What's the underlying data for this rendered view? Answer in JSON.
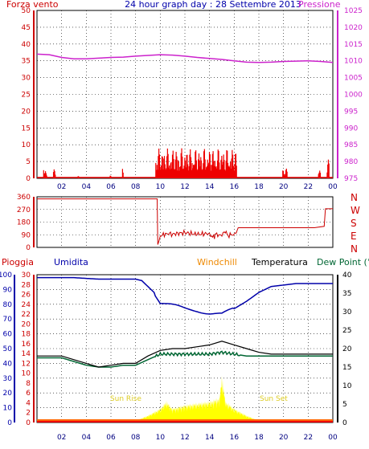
{
  "title": "24 hour graph day : 28 Settembre 2013",
  "hour_labels": [
    "02",
    "04",
    "06",
    "08",
    "10",
    "12",
    "14",
    "16",
    "18",
    "20",
    "22",
    "00"
  ],
  "colors": {
    "wind": "#ee0000",
    "pressure": "#cc22cc",
    "direction": "#cc0000",
    "humidity": "#0000aa",
    "temperature": "#000000",
    "dewpoint": "#006633",
    "windchill": "#ee8800",
    "sun": "#ffff00",
    "rain": "#ee0000",
    "axis_left": "#cc0000",
    "grid": "#000000"
  },
  "chart_data": [
    {
      "type": "bar",
      "id": "wind-pressure",
      "left_label": "Forza vento",
      "right_label": "Pressione",
      "left_ticks": [
        "0",
        "5",
        "10",
        "15",
        "20",
        "25",
        "30",
        "35",
        "40",
        "45",
        "50"
      ],
      "right_ticks": [
        "975",
        "980",
        "985",
        "990",
        "995",
        "1000",
        "1005",
        "1010",
        "1015",
        "1020",
        "1025"
      ],
      "ylim_left": [
        0,
        50
      ],
      "ylim_right": [
        975,
        1025
      ],
      "xlim": [
        0,
        24
      ],
      "pressure_series": [
        [
          0,
          1012.0
        ],
        [
          1,
          1011.8
        ],
        [
          2,
          1011.0
        ],
        [
          3,
          1010.6
        ],
        [
          4,
          1010.6
        ],
        [
          5,
          1010.8
        ],
        [
          6,
          1011.0
        ],
        [
          7,
          1011.1
        ],
        [
          8,
          1011.4
        ],
        [
          9,
          1011.6
        ],
        [
          10,
          1011.8
        ],
        [
          11,
          1011.7
        ],
        [
          12,
          1011.4
        ],
        [
          13,
          1011.0
        ],
        [
          14,
          1010.7
        ],
        [
          15,
          1010.4
        ],
        [
          16,
          1010.0
        ],
        [
          17,
          1009.6
        ],
        [
          18,
          1009.5
        ],
        [
          19,
          1009.6
        ],
        [
          20,
          1009.8
        ],
        [
          21,
          1009.9
        ],
        [
          22,
          1010.0
        ],
        [
          23,
          1009.8
        ],
        [
          24,
          1009.5
        ]
      ],
      "wind_bursts": [
        [
          0.5,
          0.8,
          3
        ],
        [
          1.3,
          1.5,
          3
        ],
        [
          3.3,
          3.4,
          2
        ],
        [
          5.9,
          6.0,
          2
        ],
        [
          6.9,
          7.0,
          3
        ],
        [
          9.6,
          16.2,
          9
        ],
        [
          19.9,
          20.3,
          3
        ],
        [
          22.8,
          23.0,
          3
        ],
        [
          23.5,
          23.7,
          6
        ]
      ]
    },
    {
      "type": "line",
      "id": "wind-direction",
      "left_ticks": [
        "0",
        "90",
        "180",
        "270",
        "360"
      ],
      "right_labels": [
        "N",
        "W",
        "S",
        "E",
        "N"
      ],
      "ylim": [
        0,
        360
      ],
      "xlim": [
        0,
        24
      ],
      "direction_series": [
        [
          0,
          345
        ],
        [
          9.75,
          345
        ],
        [
          9.8,
          20
        ],
        [
          10.0,
          80
        ],
        [
          10.5,
          100
        ],
        [
          11,
          95
        ],
        [
          12,
          105
        ],
        [
          13,
          92
        ],
        [
          14,
          100
        ],
        [
          14.4,
          60
        ],
        [
          14.5,
          95
        ],
        [
          15,
          80
        ],
        [
          15.2,
          110
        ],
        [
          15.5,
          85
        ],
        [
          16,
          95
        ],
        [
          16.4,
          140
        ],
        [
          22.5,
          140
        ],
        [
          23.3,
          150
        ],
        [
          23.4,
          275
        ],
        [
          24,
          275
        ]
      ]
    },
    {
      "type": "line",
      "id": "weather",
      "labels": {
        "rain": "Pioggia",
        "humidity": "Umidita",
        "windchill": "Windchill",
        "temperature": "Temperatura",
        "dewpoint": "Dew Point (°C"
      },
      "humidity_ticks": [
        "0",
        "10",
        "20",
        "30",
        "40",
        "50",
        "60",
        "70",
        "80",
        "90",
        "100"
      ],
      "rain_ticks": [
        "0",
        "2",
        "4",
        "6",
        "8",
        "10",
        "12",
        "14",
        "16",
        "18",
        "20",
        "22",
        "24",
        "26",
        "28",
        "30"
      ],
      "temp_ticks": [
        "0",
        "5",
        "10",
        "15",
        "20",
        "25",
        "30",
        "35",
        "40"
      ],
      "annotations": [
        {
          "label": "Sun Rise",
          "x": 7.2
        },
        {
          "label": "Sun Set",
          "x": 19.2
        }
      ],
      "ylim_humidity": [
        0,
        100
      ],
      "ylim_temp": [
        0,
        40
      ],
      "xlim": [
        0,
        24
      ],
      "humidity_series": [
        [
          0,
          98
        ],
        [
          3,
          98
        ],
        [
          5,
          97
        ],
        [
          7,
          97
        ],
        [
          8,
          97
        ],
        [
          8.5,
          96
        ],
        [
          9.5,
          88
        ],
        [
          10,
          81
        ],
        [
          11,
          79
        ],
        [
          12,
          77
        ],
        [
          13,
          76
        ],
        [
          14,
          74
        ],
        [
          15,
          73
        ],
        [
          16,
          77
        ],
        [
          17,
          82
        ],
        [
          18,
          88
        ],
        [
          19,
          92
        ],
        [
          20,
          93
        ],
        [
          21,
          94
        ],
        [
          22,
          94
        ],
        [
          24,
          94
        ]
      ],
      "temperature_series": [
        [
          0,
          18
        ],
        [
          2,
          18
        ],
        [
          3,
          17
        ],
        [
          4,
          16
        ],
        [
          5,
          15
        ],
        [
          6,
          15.5
        ],
        [
          7,
          16
        ],
        [
          8,
          16
        ],
        [
          9,
          18
        ],
        [
          10,
          19.5
        ],
        [
          11,
          20
        ],
        [
          12,
          20
        ],
        [
          13,
          20.5
        ],
        [
          14,
          21
        ],
        [
          15,
          22
        ],
        [
          16,
          21
        ],
        [
          17,
          20
        ],
        [
          18,
          19
        ],
        [
          19,
          18.5
        ],
        [
          20,
          18.5
        ],
        [
          21,
          18.5
        ],
        [
          22,
          18.5
        ],
        [
          24,
          18.5
        ]
      ],
      "dewpoint_series": [
        [
          0,
          17.5
        ],
        [
          2,
          17.5
        ],
        [
          3,
          16.5
        ],
        [
          4,
          15.5
        ],
        [
          5,
          15
        ],
        [
          6,
          15
        ],
        [
          7,
          15.5
        ],
        [
          8,
          15.5
        ],
        [
          9,
          17
        ],
        [
          10,
          18.5
        ],
        [
          11,
          18.5
        ],
        [
          12,
          18.5
        ],
        [
          13,
          18.5
        ],
        [
          14,
          18.5
        ],
        [
          15,
          19
        ],
        [
          16,
          18.5
        ],
        [
          17,
          18
        ],
        [
          18,
          18
        ],
        [
          19,
          18
        ],
        [
          20,
          18
        ],
        [
          21,
          18
        ],
        [
          22,
          18
        ],
        [
          24,
          18
        ]
      ],
      "solar_series": [
        [
          7.2,
          0
        ],
        [
          8,
          0.5
        ],
        [
          9,
          2
        ],
        [
          10,
          4
        ],
        [
          10.5,
          6
        ],
        [
          11,
          4
        ],
        [
          12,
          5
        ],
        [
          13,
          5.5
        ],
        [
          14,
          6
        ],
        [
          14.8,
          7
        ],
        [
          15,
          13
        ],
        [
          15.3,
          6
        ],
        [
          16,
          4
        ],
        [
          17,
          2
        ],
        [
          18,
          0.5
        ],
        [
          19,
          0.3
        ],
        [
          19.2,
          0
        ]
      ]
    }
  ]
}
